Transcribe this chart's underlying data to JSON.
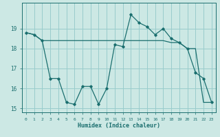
{
  "xlabel": "Humidex (Indice chaleur)",
  "bg_color": "#cce8e4",
  "grid_color": "#99cccc",
  "line_color": "#1a6e6e",
  "xlim": [
    -0.5,
    23.5
  ],
  "ylim": [
    14.8,
    20.3
  ],
  "yticks": [
    15,
    16,
    17,
    18,
    19
  ],
  "xticks": [
    0,
    1,
    2,
    3,
    4,
    5,
    6,
    7,
    8,
    9,
    10,
    11,
    12,
    13,
    14,
    15,
    16,
    17,
    18,
    19,
    20,
    21,
    22,
    23
  ],
  "series1_x": [
    0,
    1,
    2,
    3,
    4,
    5,
    6,
    7,
    8,
    9,
    10,
    11,
    12,
    13,
    14,
    15,
    16,
    17,
    18,
    19,
    20,
    21,
    22,
    23
  ],
  "series1_y": [
    18.8,
    18.7,
    18.4,
    16.5,
    16.5,
    15.3,
    15.2,
    16.1,
    16.1,
    15.2,
    16.0,
    18.2,
    18.1,
    19.7,
    19.3,
    19.1,
    18.7,
    19.0,
    18.5,
    18.3,
    18.0,
    16.8,
    16.5,
    15.3
  ],
  "series2_x": [
    0,
    1,
    2,
    3,
    10,
    11,
    12,
    13,
    14,
    15,
    16,
    17,
    18,
    19,
    20,
    21,
    22,
    23
  ],
  "series2_y": [
    18.8,
    18.7,
    18.4,
    18.4,
    18.4,
    18.4,
    18.4,
    18.4,
    18.4,
    18.4,
    18.4,
    18.4,
    18.3,
    18.3,
    18.0,
    18.0,
    15.3,
    15.3
  ]
}
